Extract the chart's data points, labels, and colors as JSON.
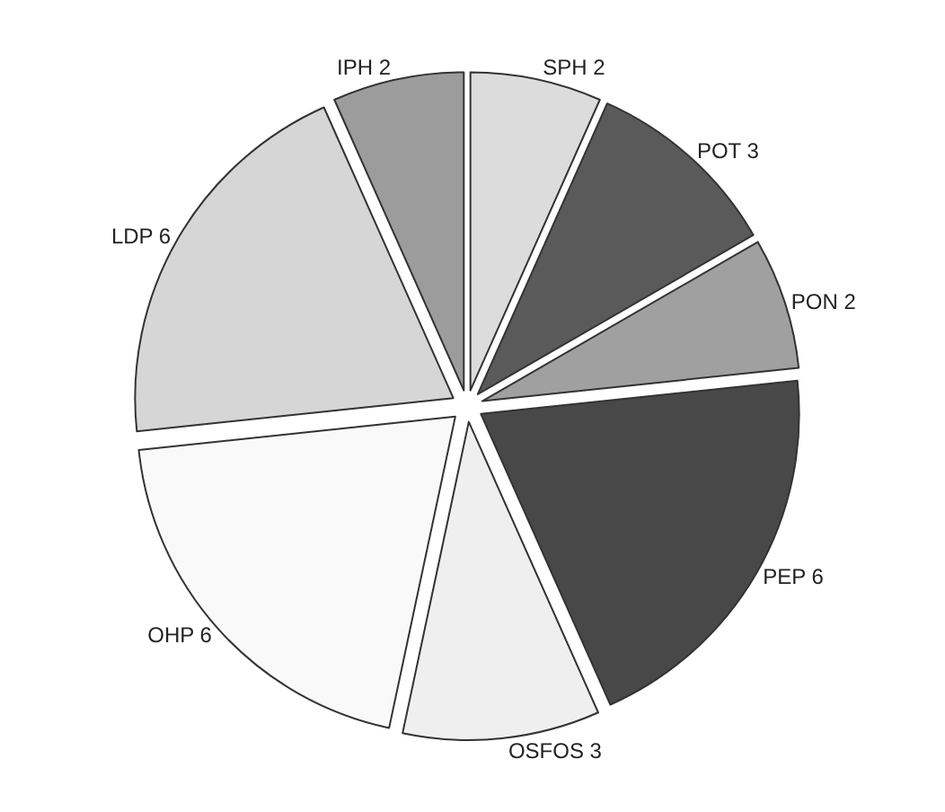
{
  "chart_data": {
    "type": "pie",
    "categories": [
      "SPH 2",
      "POT 3",
      "PON 2",
      "PEP 6",
      "OSFOS 3",
      "OHP 6",
      "LDP 6",
      "IPH 2"
    ],
    "values": [
      2,
      3,
      2,
      6,
      3,
      6,
      6,
      2
    ],
    "colors": [
      "#dcdcdc",
      "#5a5a5a",
      "#a0a0a0",
      "#484848",
      "#efefef",
      "#f9f9f9",
      "#d6d6d6",
      "#9c9c9c"
    ],
    "legend": false
  }
}
